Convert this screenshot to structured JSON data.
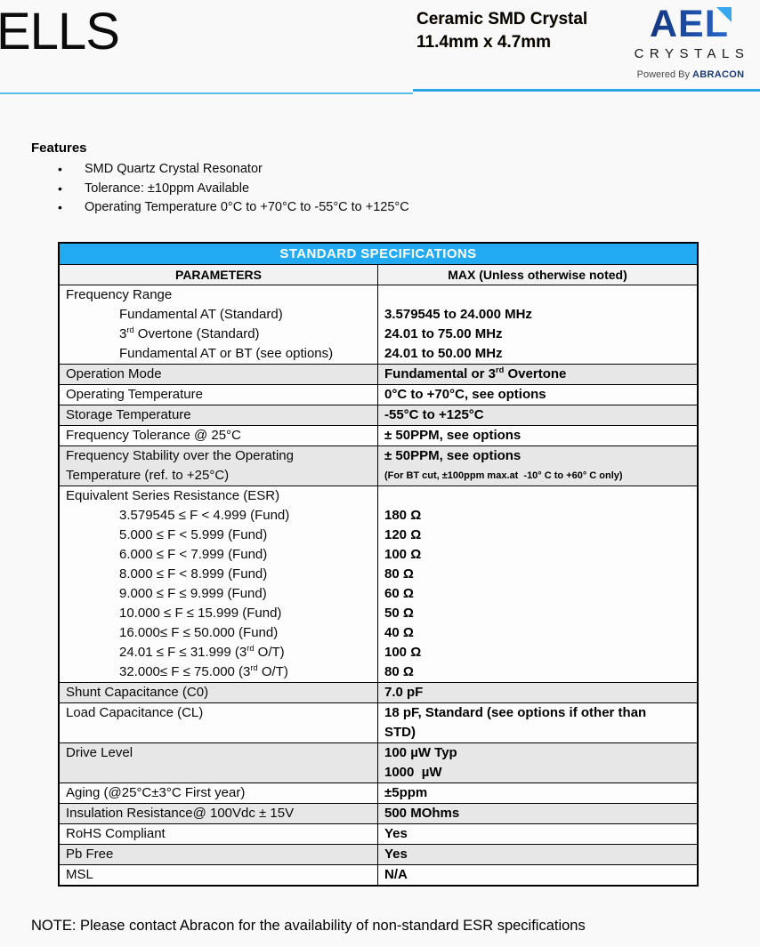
{
  "page": {
    "part_code": "ELLS",
    "title_line1": "Ceramic SMD Crystal",
    "title_line2": "11.4mm x 4.7mm"
  },
  "logo": {
    "brand": "AEL",
    "sub": "CRYSTALS",
    "powered_prefix": "Powered By ",
    "powered_brand": "ABRACON",
    "triangle_icon": "logo-triangle-icon"
  },
  "colors": {
    "table_header_blue": "#22aaf3",
    "shaded_row_gray": "#e7e7e7",
    "rule_light_blue": "#55bdec",
    "rule_dark_blue": "#2ba6e4",
    "logo_navy": "#1d4fa6",
    "logo_light_blue": "#35a8f0",
    "abracon_navy": "#1b3a74"
  },
  "features": {
    "heading": "Features",
    "items": [
      "SMD Quartz Crystal Resonator",
      "Tolerance: ±10ppm Available",
      "Operating Temperature 0°C to +70°C to -55°C to +125°C"
    ]
  },
  "spec_table": {
    "title": "STANDARD SPECIFICATIONS",
    "columns": [
      "PARAMETERS",
      "MAX (Unless otherwise noted)"
    ],
    "rows": [
      {
        "shaded": false,
        "param_lines": [
          {
            "t": "Frequency Range"
          },
          {
            "t": "Fundamental AT (Standard)",
            "ind": true
          },
          {
            "t": "3^rd^ Overtone (Standard)",
            "ind": true
          },
          {
            "t": "Fundamental AT or BT (see options)",
            "ind": true
          }
        ],
        "value_lines": [
          {
            "t": ""
          },
          {
            "t": "3.579545 to 24.000 MHz"
          },
          {
            "t": "24.01 to 75.00 MHz"
          },
          {
            "t": "24.01 to 50.00 MHz"
          }
        ]
      },
      {
        "shaded": true,
        "param_lines": [
          {
            "t": "Operation Mode"
          }
        ],
        "value_lines": [
          {
            "t": "Fundamental or 3^rd^ Overtone"
          }
        ]
      },
      {
        "shaded": false,
        "param_lines": [
          {
            "t": "Operating Temperature"
          }
        ],
        "value_lines": [
          {
            "t": "0°C to +70°C, see options"
          }
        ]
      },
      {
        "shaded": true,
        "param_lines": [
          {
            "t": "Storage Temperature"
          }
        ],
        "value_lines": [
          {
            "t": "-55°C to +125°C"
          }
        ]
      },
      {
        "shaded": false,
        "param_lines": [
          {
            "t": "Frequency Tolerance @ 25°C"
          }
        ],
        "value_lines": [
          {
            "t": "± 50PPM, see options"
          }
        ]
      },
      {
        "shaded": true,
        "param_lines": [
          {
            "t": "Frequency Stability over the Operating"
          },
          {
            "t": "Temperature (ref. to +25°C)"
          }
        ],
        "value_lines": [
          {
            "t": "± 50PPM, see options"
          },
          {
            "t": "(For BT cut, ±100ppm max.at  -10° C to +60° C only)",
            "small": true
          }
        ]
      },
      {
        "shaded": false,
        "param_lines": [
          {
            "t": "Equivalent Series Resistance (ESR)"
          },
          {
            "t": "3.579545 ≤ F < 4.999 (Fund)",
            "ind": true
          },
          {
            "t": "5.000 ≤ F < 5.999 (Fund)",
            "ind": true
          },
          {
            "t": "6.000 ≤ F < 7.999 (Fund)",
            "ind": true
          },
          {
            "t": "8.000 ≤ F < 8.999 (Fund)",
            "ind": true
          },
          {
            "t": "9.000 ≤ F ≤ 9.999 (Fund)",
            "ind": true
          },
          {
            "t": "10.000 ≤ F ≤ 15.999 (Fund)",
            "ind": true
          },
          {
            "t": "16.000≤ F ≤ 50.000 (Fund)",
            "ind": true
          },
          {
            "t": "24.01 ≤ F ≤ 31.999 (3^rd^ O/T)",
            "ind": true
          },
          {
            "t": "32.000≤ F ≤ 75.000 (3^rd^ O/T)",
            "ind": true
          }
        ],
        "value_lines": [
          {
            "t": ""
          },
          {
            "t": "180 Ω"
          },
          {
            "t": "120 Ω"
          },
          {
            "t": "100 Ω"
          },
          {
            "t": "80 Ω"
          },
          {
            "t": "60 Ω"
          },
          {
            "t": "50 Ω"
          },
          {
            "t": "40 Ω"
          },
          {
            "t": "100 Ω"
          },
          {
            "t": "80 Ω"
          }
        ]
      },
      {
        "shaded": true,
        "param_lines": [
          {
            "t": "Shunt Capacitance (C0)"
          }
        ],
        "value_lines": [
          {
            "t": "7.0 pF"
          }
        ]
      },
      {
        "shaded": false,
        "param_lines": [
          {
            "t": "Load Capacitance (CL)"
          }
        ],
        "value_lines": [
          {
            "t": "18 pF, Standard (see options if other than"
          },
          {
            "t": "STD)"
          }
        ]
      },
      {
        "shaded": true,
        "param_lines": [
          {
            "t": "Drive Level"
          }
        ],
        "value_lines": [
          {
            "t": "100 µW Typ"
          },
          {
            "t": "1000  µW"
          }
        ]
      },
      {
        "shaded": false,
        "param_lines": [
          {
            "t": "Aging (@25°C±3°C First year)"
          }
        ],
        "value_lines": [
          {
            "t": "±5ppm"
          }
        ]
      },
      {
        "shaded": true,
        "param_lines": [
          {
            "t": "Insulation Resistance@ 100Vdc ± 15V"
          }
        ],
        "value_lines": [
          {
            "t": "500 MOhms"
          }
        ]
      },
      {
        "shaded": false,
        "param_lines": [
          {
            "t": "RoHS Compliant"
          }
        ],
        "value_lines": [
          {
            "t": "Yes"
          }
        ]
      },
      {
        "shaded": true,
        "param_lines": [
          {
            "t": "Pb Free"
          }
        ],
        "value_lines": [
          {
            "t": "Yes"
          }
        ]
      },
      {
        "shaded": false,
        "param_lines": [
          {
            "t": "MSL"
          }
        ],
        "value_lines": [
          {
            "t": "N/A"
          }
        ]
      }
    ]
  },
  "note": "NOTE: Please contact Abracon for the availability of non-standard ESR specifications"
}
